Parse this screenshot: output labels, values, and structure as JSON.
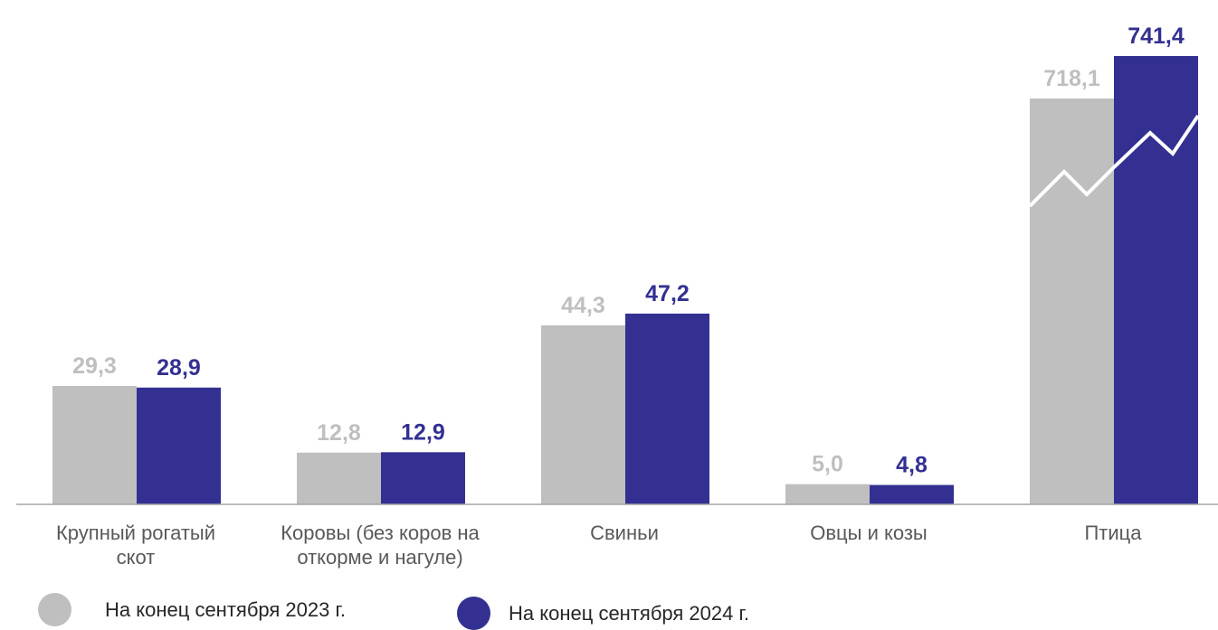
{
  "chart_data": {
    "type": "bar",
    "categories": [
      "Крупный рогатый скот",
      "Коровы (без коров на откорме и нагуле)",
      "Свиньи",
      "Овцы и козы",
      "Птица"
    ],
    "category_lines": [
      [
        "Крупный рогатый",
        "скот"
      ],
      [
        "Коровы (без коров на",
        "откорме и нагуле)"
      ],
      [
        "Свиньи"
      ],
      [
        "Овцы и козы"
      ],
      [
        "Птица"
      ]
    ],
    "series": [
      {
        "name": "На конец сентября 2023 г.",
        "values": [
          29.3,
          12.8,
          44.3,
          5.0,
          718.1
        ],
        "labels": [
          "29,3",
          "12,8",
          "44,3",
          "5,0",
          "718,1"
        ],
        "color": "#bfbfbf"
      },
      {
        "name": "На конец сентября 2024 г.",
        "values": [
          28.9,
          12.9,
          47.2,
          4.8,
          741.4
        ],
        "labels": [
          "28,9",
          "12,9",
          "47,2",
          "4,8",
          "741,4"
        ],
        "color": "#333092"
      }
    ],
    "axis_break_category": "Птица",
    "grid": false,
    "legend_position": "bottom"
  }
}
